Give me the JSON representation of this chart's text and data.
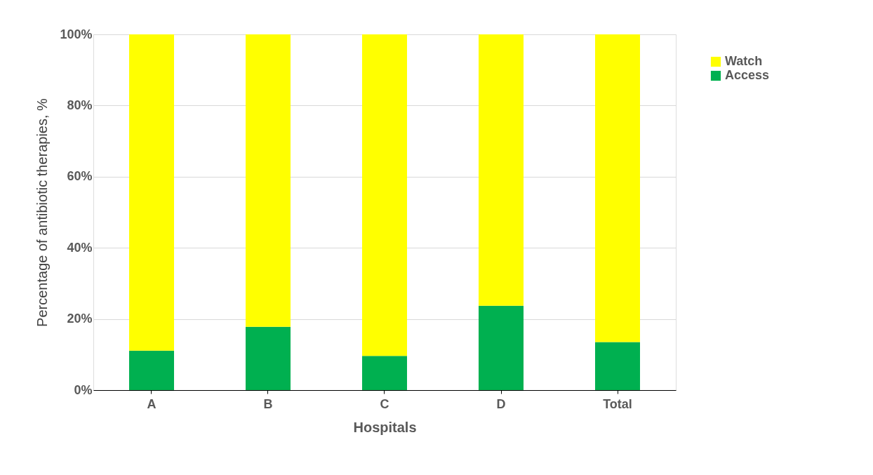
{
  "chart_data": {
    "type": "bar",
    "stacked": true,
    "xlabel": "Hospitals",
    "ylabel": "Percentage of antibiotic therapies, %",
    "categories": [
      "A",
      "B",
      "C",
      "D",
      "Total"
    ],
    "series": [
      {
        "name": "Access",
        "color": "#00b050",
        "values": [
          11.1,
          17.8,
          9.6,
          23.7,
          13.5
        ]
      },
      {
        "name": "Watch",
        "color": "#ffff00",
        "values": [
          88.9,
          82.2,
          90.4,
          76.3,
          86.5
        ]
      }
    ],
    "ylim": [
      0,
      100
    ],
    "yticks": [
      {
        "value": 0,
        "label": "0%"
      },
      {
        "value": 20,
        "label": "20%"
      },
      {
        "value": 40,
        "label": "40%"
      },
      {
        "value": 60,
        "label": "60%"
      },
      {
        "value": 80,
        "label": "80%"
      },
      {
        "value": 100,
        "label": "100%"
      }
    ],
    "grid": "y",
    "legend": "right"
  }
}
